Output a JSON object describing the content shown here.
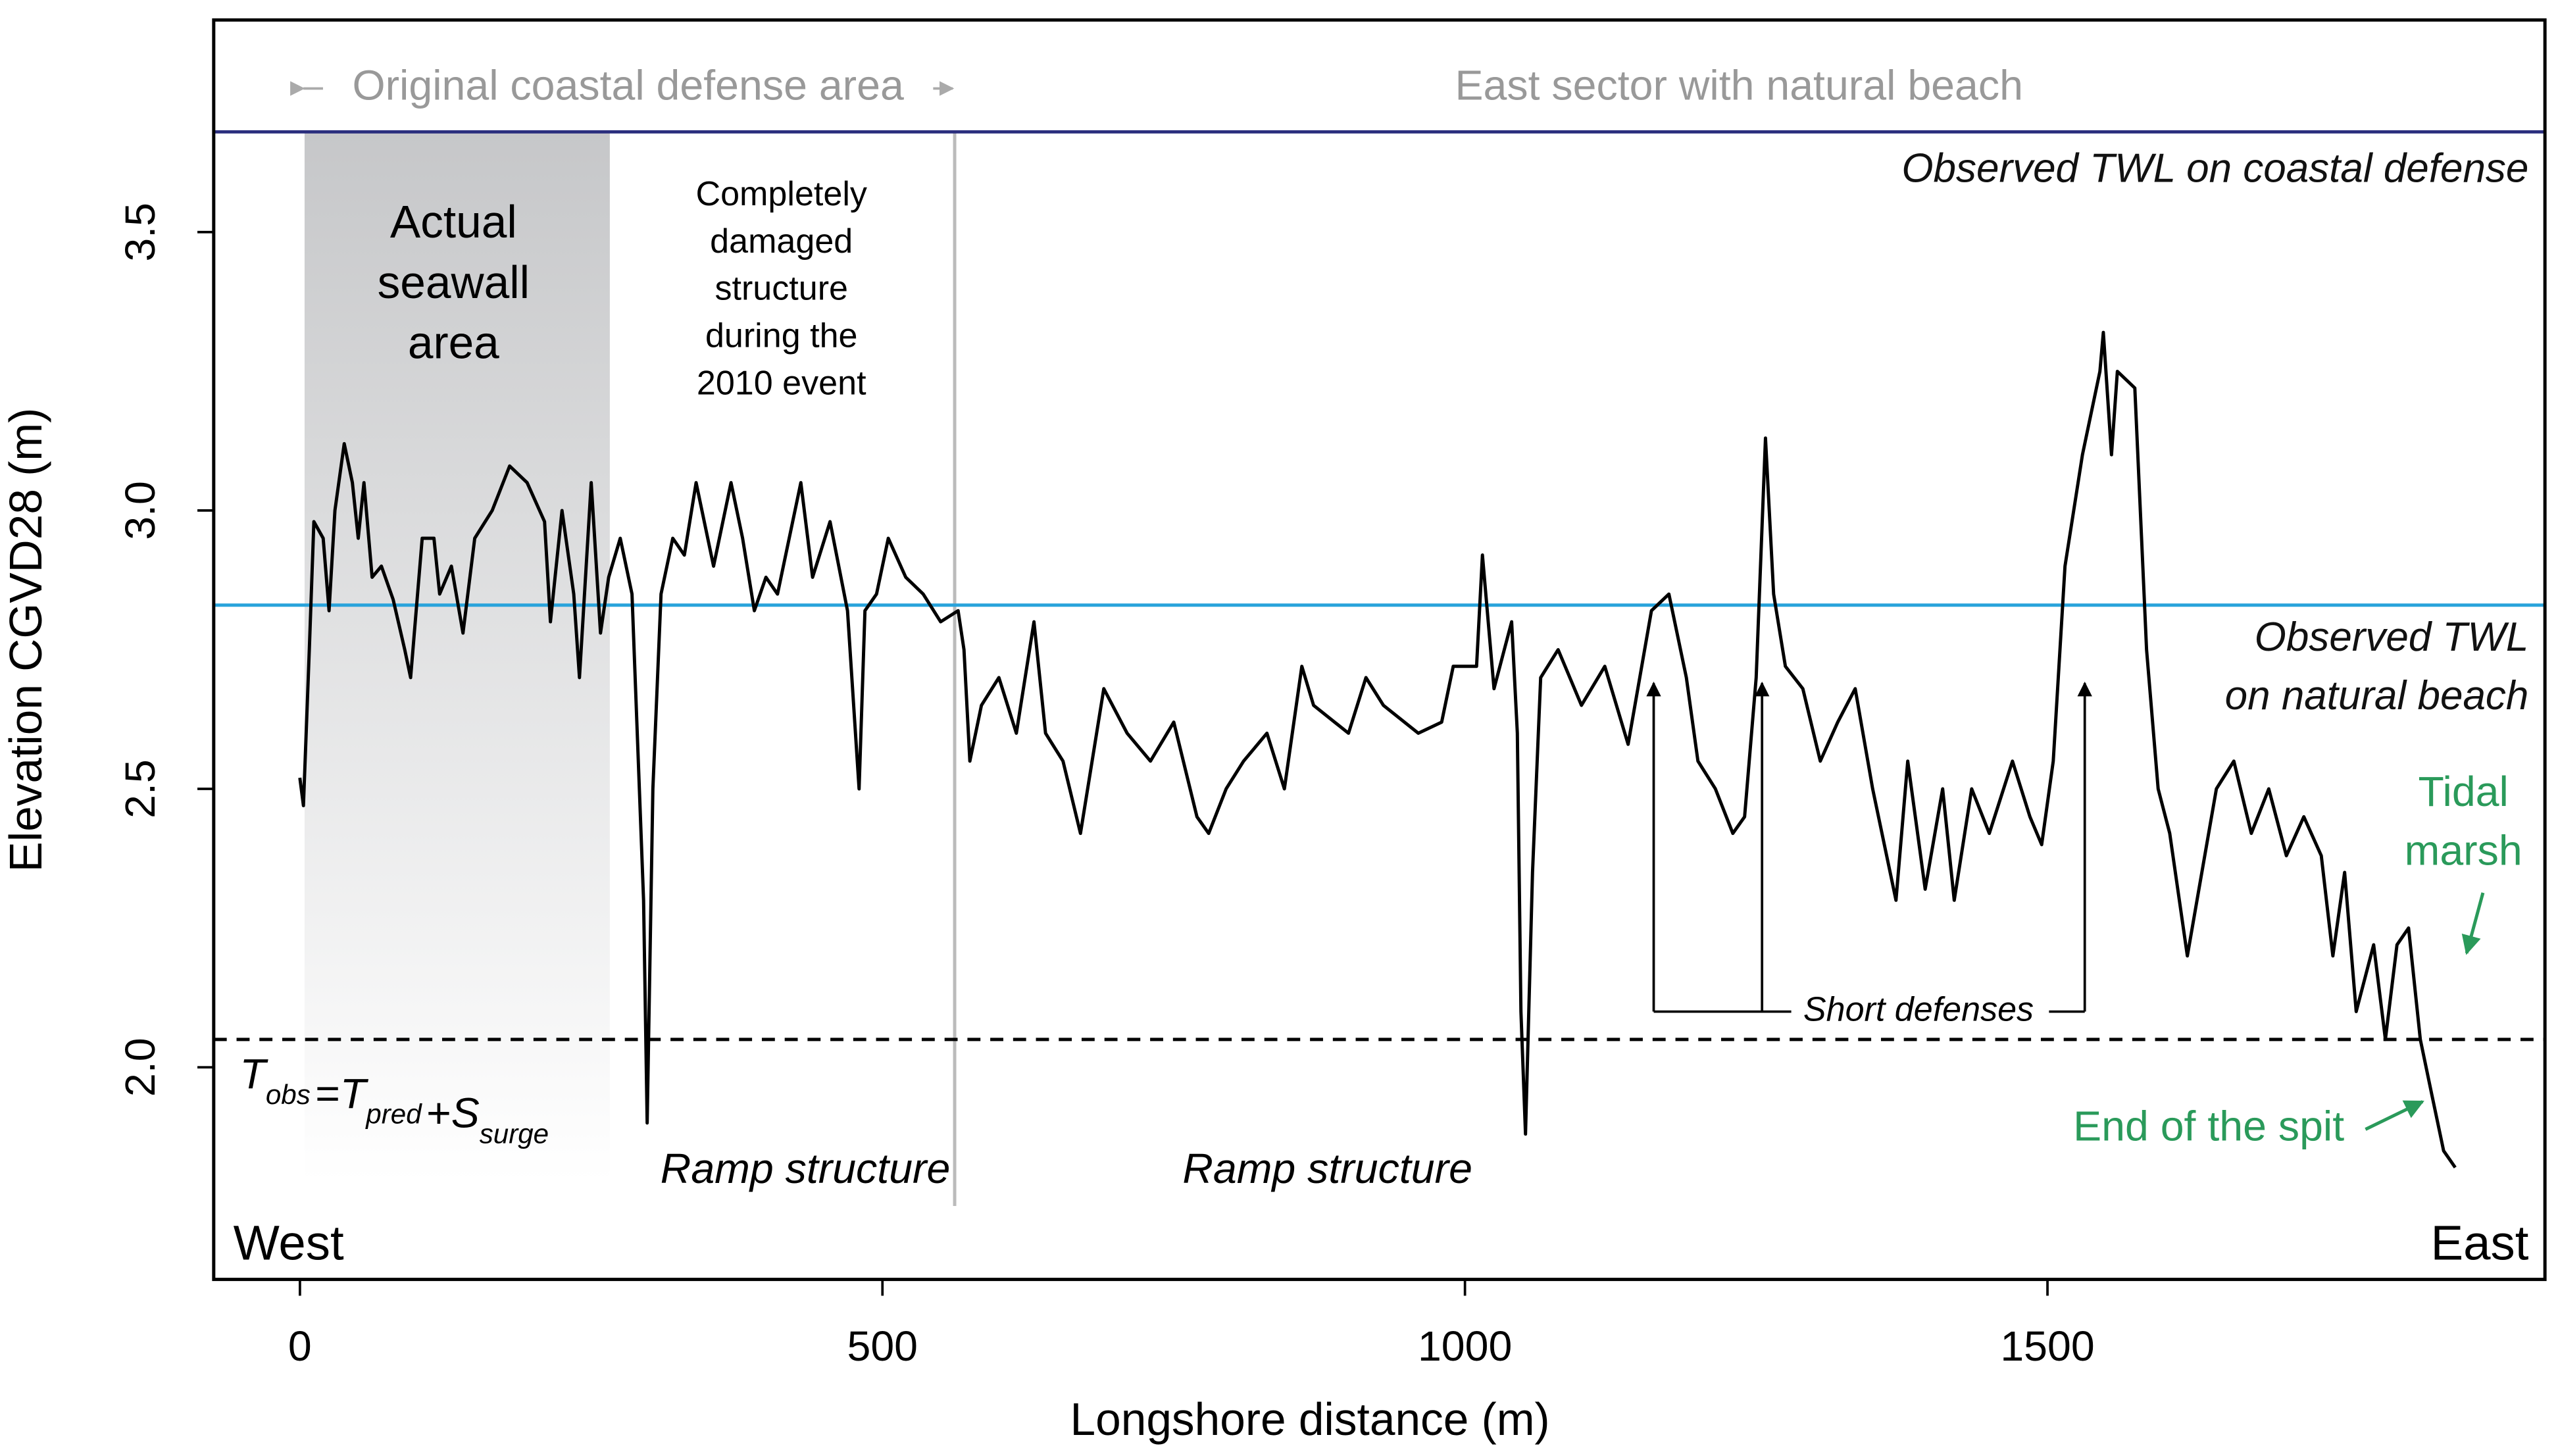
{
  "chart_data": {
    "type": "line",
    "xlabel": "Longshore distance (m)",
    "ylabel": "Elevation CGVD28 (m)",
    "xlim": [
      -74,
      1927
    ],
    "ylim": [
      1.619,
      3.881
    ],
    "xticks": [
      0,
      500,
      1000,
      1500
    ],
    "yticks": [
      2.0,
      2.5,
      3.0,
      3.5
    ],
    "grid": false,
    "series": [
      {
        "color": "#000000",
        "x": [
          0,
          3,
          8,
          12,
          20,
          25,
          30,
          38,
          45,
          50,
          55,
          62,
          70,
          80,
          90,
          95,
          105,
          115,
          120,
          130,
          140,
          150,
          165,
          180,
          195,
          210,
          215,
          225,
          235,
          240,
          250,
          258,
          265,
          275,
          285,
          295,
          298,
          303,
          310,
          320,
          330,
          340,
          355,
          370,
          380,
          390,
          400,
          410,
          430,
          440,
          455,
          470,
          480,
          485,
          495,
          505,
          520,
          535,
          550,
          565,
          570,
          575,
          585,
          600,
          615,
          630,
          640,
          655,
          670,
          690,
          710,
          730,
          750,
          770,
          780,
          795,
          810,
          830,
          845,
          860,
          870,
          900,
          915,
          930,
          960,
          980,
          990,
          1010,
          1015,
          1025,
          1040,
          1045,
          1048,
          1052,
          1058,
          1065,
          1080,
          1100,
          1120,
          1140,
          1160,
          1175,
          1190,
          1200,
          1215,
          1230,
          1240,
          1250,
          1258,
          1265,
          1275,
          1290,
          1305,
          1320,
          1335,
          1350,
          1370,
          1380,
          1395,
          1410,
          1420,
          1435,
          1450,
          1470,
          1485,
          1495,
          1505,
          1515,
          1530,
          1545,
          1548,
          1555,
          1560,
          1575,
          1585,
          1595,
          1605,
          1620,
          1630,
          1645,
          1660,
          1675,
          1690,
          1705,
          1720,
          1735,
          1745,
          1755,
          1765,
          1780,
          1790,
          1800,
          1810,
          1820,
          1830,
          1840,
          1850
        ],
        "values": [
          2.52,
          2.47,
          2.75,
          2.98,
          2.95,
          2.82,
          3.0,
          3.12,
          3.05,
          2.95,
          3.05,
          2.88,
          2.9,
          2.84,
          2.75,
          2.7,
          2.95,
          2.95,
          2.85,
          2.9,
          2.78,
          2.95,
          3.0,
          3.08,
          3.05,
          2.98,
          2.8,
          3.0,
          2.85,
          2.7,
          3.05,
          2.78,
          2.88,
          2.95,
          2.85,
          2.3,
          1.9,
          2.5,
          2.85,
          2.95,
          2.92,
          3.05,
          2.9,
          3.05,
          2.95,
          2.82,
          2.88,
          2.85,
          3.05,
          2.88,
          2.98,
          2.82,
          2.5,
          2.82,
          2.85,
          2.95,
          2.88,
          2.85,
          2.8,
          2.82,
          2.75,
          2.55,
          2.65,
          2.7,
          2.6,
          2.8,
          2.6,
          2.55,
          2.42,
          2.68,
          2.6,
          2.55,
          2.62,
          2.45,
          2.42,
          2.5,
          2.55,
          2.6,
          2.5,
          2.72,
          2.65,
          2.6,
          2.7,
          2.65,
          2.6,
          2.62,
          2.72,
          2.72,
          2.92,
          2.68,
          2.8,
          2.6,
          2.1,
          1.88,
          2.35,
          2.7,
          2.75,
          2.65,
          2.72,
          2.58,
          2.82,
          2.85,
          2.7,
          2.55,
          2.5,
          2.42,
          2.45,
          2.7,
          3.13,
          2.85,
          2.72,
          2.68,
          2.55,
          2.62,
          2.68,
          2.5,
          2.3,
          2.55,
          2.32,
          2.5,
          2.3,
          2.5,
          2.42,
          2.55,
          2.45,
          2.4,
          2.55,
          2.9,
          3.1,
          3.25,
          3.32,
          3.1,
          3.25,
          3.22,
          2.75,
          2.5,
          2.42,
          2.2,
          2.32,
          2.5,
          2.55,
          2.42,
          2.5,
          2.38,
          2.45,
          2.38,
          2.2,
          2.35,
          2.1,
          2.22,
          2.05,
          2.22,
          2.25,
          2.05,
          1.95,
          1.85,
          1.82
        ]
      }
    ],
    "hlines": [
      {
        "value": 3.68,
        "color": "#2b2f7e",
        "label": [
          "Observed TWL on coastal defense"
        ]
      },
      {
        "value": 2.83,
        "color": "#29a3db",
        "label": [
          "Observed TWL",
          "on natural beach"
        ]
      },
      {
        "value": 2.05,
        "color": "#000000",
        "dashed": true
      }
    ],
    "vline": {
      "value": 562,
      "color": "#bbbbbb"
    },
    "shaded": {
      "range": [
        4,
        266
      ],
      "label": [
        "Actual",
        "seawall",
        "area"
      ]
    },
    "sectors": [
      "Original coastal defense area",
      "East sector with natural beach"
    ],
    "damaged_label": [
      "Completely",
      "damaged",
      "structure",
      "during the",
      "2010 event"
    ],
    "ramp_labels": [
      {
        "x": 298,
        "text": "Ramp structure"
      },
      {
        "x": 1050,
        "text": "Ramp structure"
      }
    ],
    "short_defenses": {
      "text": "Short defenses",
      "x": [
        1162,
        1255,
        1532
      ],
      "from": 2.1,
      "to": 2.69
    },
    "green_labels": {
      "color": "#2a9a5a",
      "tidal": [
        "Tidal",
        "marsh"
      ],
      "spit": "End of the spit"
    },
    "ends": [
      "West",
      "East"
    ],
    "formula": [
      "T",
      "obs",
      "=",
      "T",
      "pred",
      "+",
      "S",
      "surge"
    ]
  }
}
